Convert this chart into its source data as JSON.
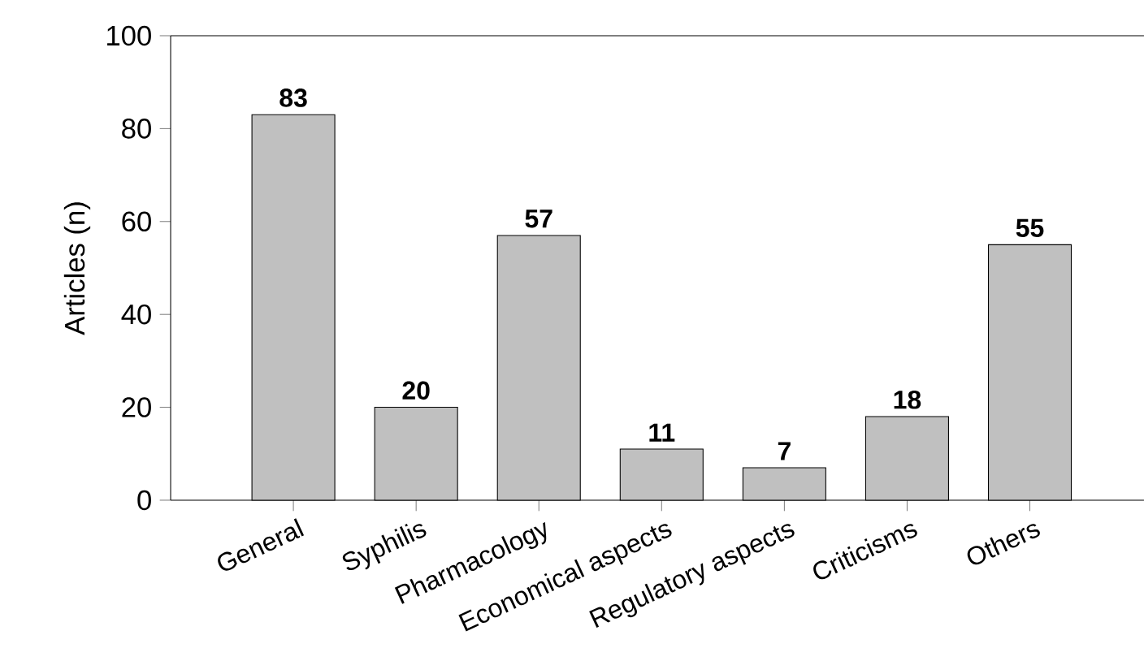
{
  "chart_data": {
    "type": "bar",
    "ylabel": "Articles (n)",
    "categories": [
      "General",
      "Syphilis",
      "Pharmacology",
      "Economical aspects",
      "Regulatory aspects",
      "Criticisms",
      "Others"
    ],
    "values": [
      83,
      20,
      57,
      11,
      7,
      18,
      55
    ],
    "color": "#c0c0c0",
    "ylim": [
      0,
      100
    ],
    "yticks": [
      0,
      20,
      40,
      60,
      80,
      100
    ],
    "data_labels": true,
    "grid": false
  }
}
